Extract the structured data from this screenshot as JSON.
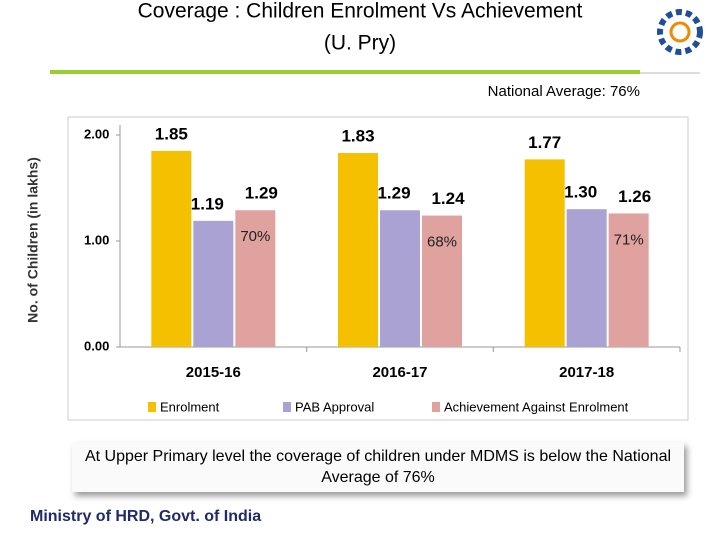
{
  "title_lines": [
    "Coverage : Children Enrolment Vs Achievement",
    "(U. Pry)"
  ],
  "national_average": "National Average: 76%",
  "note": "At Upper Primary level the coverage of children under MDMS is below the National Average of 76%",
  "footer": "Ministry of HRD, Govt. of India",
  "chart_data": {
    "type": "bar",
    "y_label": "No. of Children (in lakhs)",
    "categories": [
      "2015-16",
      "2016-17",
      "2017-18"
    ],
    "series": [
      {
        "name": "Enrolment",
        "color": "#f5c000",
        "values": [
          1.85,
          1.83,
          1.77
        ]
      },
      {
        "name": "PAB Approval",
        "color": "#aaa2d2",
        "values": [
          1.19,
          1.29,
          1.3
        ],
        "value_labels": [
          "1.19",
          "1.29",
          "1.30"
        ]
      },
      {
        "name": "Achievement Against Enrolment",
        "color": "#e0a29e",
        "values": [
          1.29,
          1.24,
          1.26
        ],
        "annotations": [
          "70%",
          "68%",
          "71%"
        ]
      }
    ],
    "ylim": [
      0,
      2
    ],
    "yticks": [
      {
        "value": 0,
        "label": "0.00"
      },
      {
        "value": 1,
        "label": "1.00"
      },
      {
        "value": 2,
        "label": "2.00"
      }
    ],
    "grid": false
  }
}
